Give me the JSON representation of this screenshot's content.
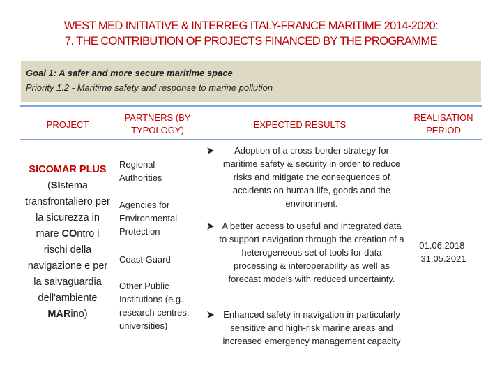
{
  "header": {
    "title_lines": [
      "WEST MED INITIATIVE & INTERREG ITALY-FRANCE MARITIME 2014-2020:",
      "7. THE CONTRIBUTION OF PROJECTS FINANCED BY THE PROGRAMME"
    ]
  },
  "goal": {
    "goal": "Goal 1: A safer and more secure maritime space",
    "priority": "Priority 1.2 - Maritime safety and response to marine pollution"
  },
  "table": {
    "columns": [
      "PROJECT",
      "PARTNERS (BY TYPOLOGY)",
      "EXPECTED RESULTS",
      "REALISATION PERIOD"
    ],
    "project": {
      "name": "SICOMAR PLUS",
      "description": [
        {
          "text": "(",
          "bold": false
        },
        {
          "text": "SI",
          "bold": true
        },
        {
          "text": "stema transfrontaliero per la sicurezza in mare ",
          "bold": false
        },
        {
          "text": "CO",
          "bold": true
        },
        {
          "text": "ntro i rischi della navigazione e per la salvaguardia dell'ambiente ",
          "bold": false
        },
        {
          "text": "MAR",
          "bold": true
        },
        {
          "text": "ino)",
          "bold": false
        }
      ]
    },
    "partners": [
      "Regional Authorities",
      "Agencies for Environmental Protection",
      "Coast Guard",
      "Other Public Institutions (e.g. research centres, universities)"
    ],
    "results": [
      "Adoption of a cross-border strategy for maritime safety & security in order to reduce risks and mitigate the consequences of accidents on human life, goods and the environment.",
      "A better access to useful and integrated data to support navigation through the creation of a heterogeneous set of tools for data processing & interoperability as well as forecast models with reduced uncertainty.",
      "Enhanced safety in navigation in particularly sensitive and high-risk marine areas and increased emergency management capacity"
    ],
    "period": "01.06.2018-31.05.2021"
  }
}
